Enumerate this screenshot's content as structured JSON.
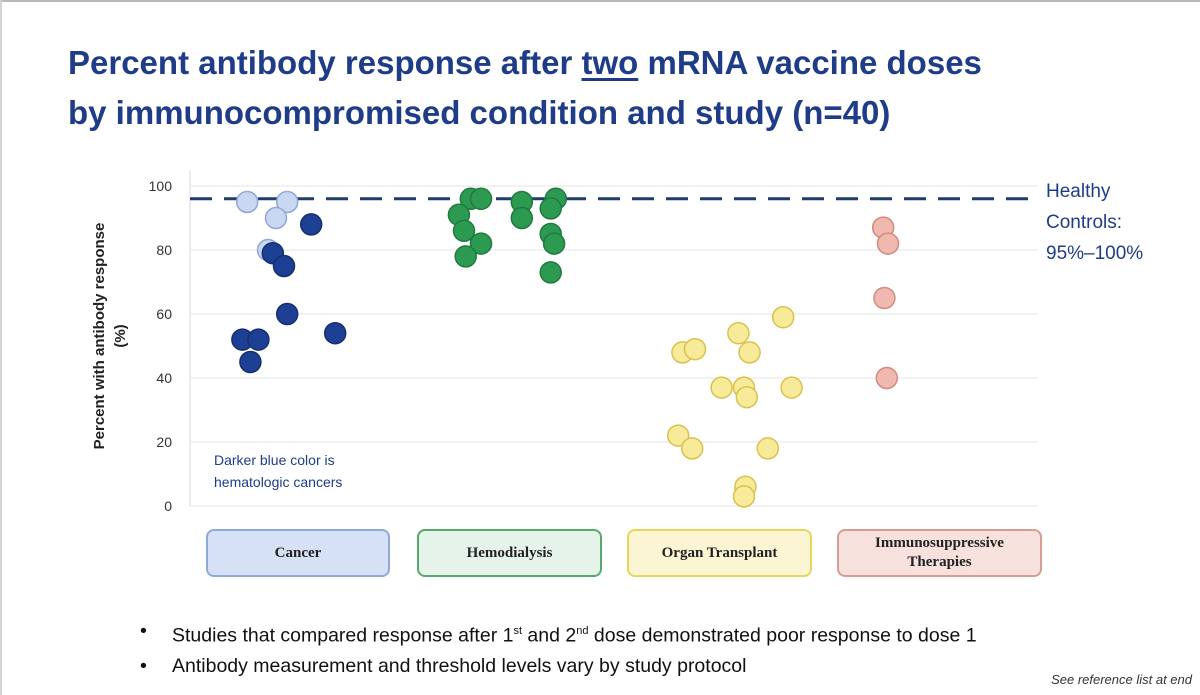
{
  "title": {
    "line1_before": "Percent antibody response after ",
    "line1_emph": "two",
    "line1_after": " mRNA vaccine doses",
    "line2": "by immunocompromised condition and study (n=40)"
  },
  "ylabel": "Percent with antibody response (%)",
  "healthy_controls": "Healthy\nControls:\n95%–100%",
  "annotation": "Darker blue color is hematologic cancers",
  "categories": [
    {
      "label": "Cancer",
      "fill": "#d6e1f5",
      "border": "#8fa9d9"
    },
    {
      "label": "Hemodialysis",
      "fill": "#e5f3ea",
      "border": "#58a96e"
    },
    {
      "label": "Organ Transplant",
      "fill": "#fbf5d3",
      "border": "#e8d75a"
    },
    {
      "label": "Immunosuppressive Therapies",
      "fill": "#f6e1dd",
      "border": "#d79c92"
    }
  ],
  "bullets": [
    {
      "pre": "Studies that compared response after 1",
      "sup1": "st",
      "mid": " and 2",
      "sup2": "nd",
      "post": " dose demonstrated poor response to dose 1"
    },
    {
      "pre": "Antibody measurement and threshold levels vary by study protocol"
    }
  ],
  "reference": "See reference list at end",
  "chart_data": {
    "type": "scatter",
    "y_ticks": [
      "0",
      "20",
      "40",
      "60",
      "80",
      "100"
    ],
    "ylim": [
      0,
      100
    ],
    "grid": true,
    "reference_line": {
      "value": 96,
      "style": "dashed",
      "color": "#1f3c6e"
    },
    "series": [
      {
        "category": "Cancer",
        "color": "#c9d7f2",
        "stroke": "#8fa6d6",
        "points": [
          {
            "x": 0.17,
            "y": 95
          },
          {
            "x": 0.42,
            "y": 95
          },
          {
            "x": 0.35,
            "y": 90
          },
          {
            "x": 0.3,
            "y": 80
          }
        ]
      },
      {
        "category": "Cancer",
        "color": "#1d3f94",
        "stroke": "#14306e",
        "points": [
          {
            "x": 0.57,
            "y": 88
          },
          {
            "x": 0.33,
            "y": 79
          },
          {
            "x": 0.4,
            "y": 75
          },
          {
            "x": 0.42,
            "y": 60
          },
          {
            "x": 0.72,
            "y": 54
          },
          {
            "x": 0.14,
            "y": 52
          },
          {
            "x": 0.24,
            "y": 52
          },
          {
            "x": 0.19,
            "y": 45
          }
        ]
      },
      {
        "category": "Hemodialysis",
        "color": "#2d9a52",
        "stroke": "#1f7a3e",
        "points": [
          {
            "x": 0.24,
            "y": 96
          },
          {
            "x": 0.3,
            "y": 96
          },
          {
            "x": 0.54,
            "y": 95
          },
          {
            "x": 0.74,
            "y": 96
          },
          {
            "x": 0.17,
            "y": 91
          },
          {
            "x": 0.2,
            "y": 86
          },
          {
            "x": 0.3,
            "y": 82
          },
          {
            "x": 0.21,
            "y": 78
          },
          {
            "x": 0.54,
            "y": 90
          },
          {
            "x": 0.71,
            "y": 93
          },
          {
            "x": 0.71,
            "y": 85
          },
          {
            "x": 0.73,
            "y": 82
          },
          {
            "x": 0.71,
            "y": 73
          }
        ]
      },
      {
        "category": "Organ Transplant",
        "color": "#f7ea98",
        "stroke": "#d8c24e",
        "points": [
          {
            "x": 0.16,
            "y": 48
          },
          {
            "x": 0.25,
            "y": 49
          },
          {
            "x": 0.56,
            "y": 54
          },
          {
            "x": 0.64,
            "y": 48
          },
          {
            "x": 0.88,
            "y": 59
          },
          {
            "x": 0.44,
            "y": 37
          },
          {
            "x": 0.6,
            "y": 37
          },
          {
            "x": 0.62,
            "y": 34
          },
          {
            "x": 0.94,
            "y": 37
          },
          {
            "x": 0.13,
            "y": 22
          },
          {
            "x": 0.23,
            "y": 18
          },
          {
            "x": 0.77,
            "y": 18
          },
          {
            "x": 0.61,
            "y": 6
          },
          {
            "x": 0.6,
            "y": 3
          }
        ]
      },
      {
        "category": "Immunosuppressive Therapies",
        "color": "#f0b8ae",
        "stroke": "#cf8c80",
        "points": [
          {
            "x": 0.36,
            "y": 87
          },
          {
            "x": 0.4,
            "y": 82
          },
          {
            "x": 0.37,
            "y": 65
          },
          {
            "x": 0.39,
            "y": 40
          }
        ]
      }
    ]
  }
}
